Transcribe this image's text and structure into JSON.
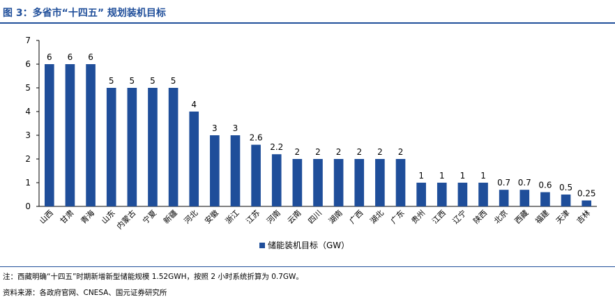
{
  "header": {
    "title": "图 3：多省市“十四五” 规划装机目标"
  },
  "chart_data": {
    "type": "bar",
    "categories": [
      "山西",
      "甘肃",
      "青海",
      "山东",
      "内蒙古",
      "宁夏",
      "新疆",
      "河北",
      "安徽",
      "浙江",
      "江苏",
      "河南",
      "云南",
      "四川",
      "湖南",
      "广西",
      "湖北",
      "广东",
      "贵州",
      "江西",
      "辽宁",
      "陕西",
      "北京",
      "西藏",
      "福建",
      "天津",
      "吉林"
    ],
    "series": [
      {
        "name": "储能装机目标（GW）",
        "values": [
          6,
          6,
          6,
          5,
          5,
          5,
          5,
          4,
          3,
          3,
          2.6,
          2.2,
          2,
          2,
          2,
          2,
          2,
          2,
          1,
          1,
          1,
          1,
          0.7,
          0.7,
          0.6,
          0.5,
          0.25
        ],
        "labels": [
          "6",
          "6",
          "6",
          "5",
          "5",
          "5",
          "5",
          "4",
          "3",
          "3",
          "2.6",
          "2.2",
          "2",
          "2",
          "2",
          "2",
          "2",
          "2",
          "1",
          "1",
          "1",
          "1",
          "0.7",
          "0.7",
          "0.6",
          "0.5",
          "0.25"
        ]
      }
    ],
    "yticks": [
      "0",
      "1",
      "2",
      "3",
      "4",
      "5",
      "6",
      "7"
    ],
    "ylim": [
      0,
      7
    ],
    "grid": false,
    "legend": "bottom-center",
    "color": "#1f4e9a"
  },
  "footer": {
    "note": "注：西藏明确“十四五”时期新增新型储能规模 1.52GWH，按照 2 小时系统折算为 0.7GW。",
    "source": "资料来源：各政府官网、CNESA、国元证券研究所"
  }
}
